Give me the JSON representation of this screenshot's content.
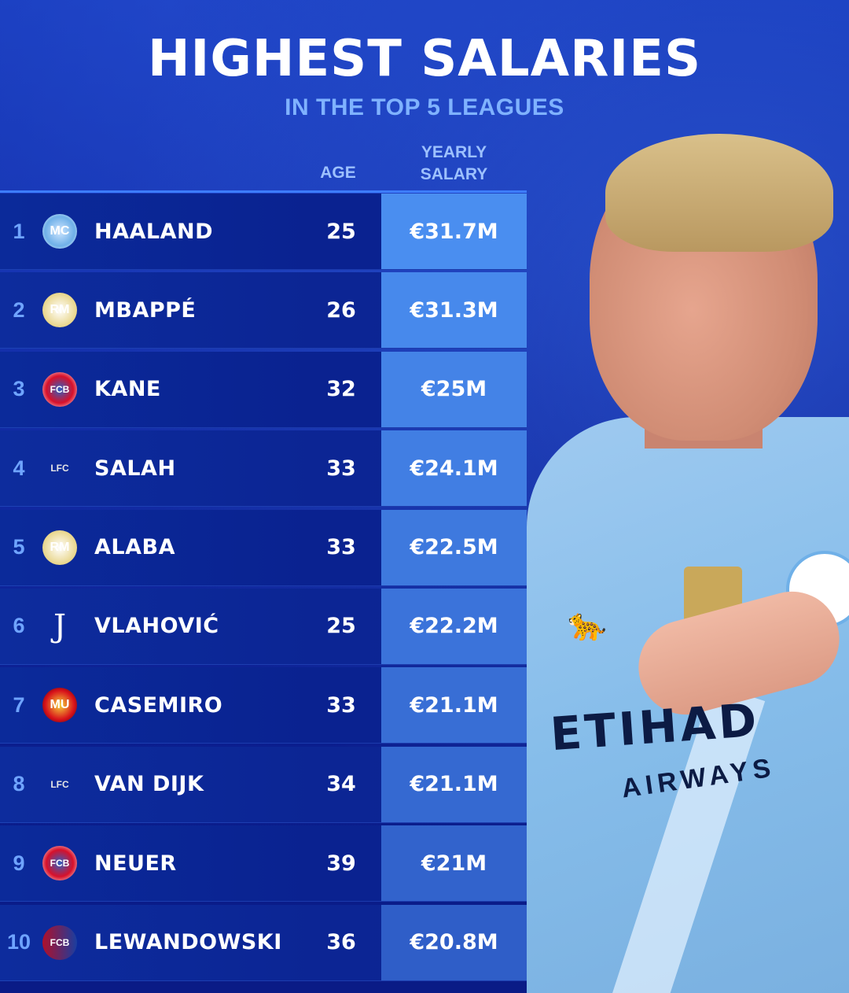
{
  "header": {
    "title": "HIGHEST SALARIES",
    "subtitle": "IN THE TOP 5 LEAGUES"
  },
  "columns": {
    "age": "AGE",
    "salary_line1": "YEARLY",
    "salary_line2": "SALARY"
  },
  "colors": {
    "background": "#0a1a8a",
    "accent": "#3d7dff",
    "subtitle": "#7fb2ff",
    "salary_top": "#4a8ef0",
    "salary_bottom": "#2f5ec8"
  },
  "rows": [
    {
      "rank": "1",
      "club_icon": "manchester-city-crest",
      "name": "HAALAND",
      "age": "25",
      "salary": "€31.7M"
    },
    {
      "rank": "2",
      "club_icon": "real-madrid-crest",
      "name": "MBAPPÉ",
      "age": "26",
      "salary": "€31.3M"
    },
    {
      "rank": "3",
      "club_icon": "bayern-munich-crest",
      "name": "KANE",
      "age": "32",
      "salary": "€25M"
    },
    {
      "rank": "4",
      "club_icon": "liverpool-crest",
      "name": "SALAH",
      "age": "33",
      "salary": "€24.1M"
    },
    {
      "rank": "5",
      "club_icon": "real-madrid-crest",
      "name": "ALABA",
      "age": "33",
      "salary": "€22.5M"
    },
    {
      "rank": "6",
      "club_icon": "juventus-crest",
      "name": "VLAHOVIĆ",
      "age": "25",
      "salary": "€22.2M"
    },
    {
      "rank": "7",
      "club_icon": "manchester-united-crest",
      "name": "CASEMIRO",
      "age": "33",
      "salary": "€21.1M"
    },
    {
      "rank": "8",
      "club_icon": "liverpool-crest",
      "name": "VAN DIJK",
      "age": "34",
      "salary": "€21.1M"
    },
    {
      "rank": "9",
      "club_icon": "bayern-munich-crest",
      "name": "NEUER",
      "age": "39",
      "salary": "€21M"
    },
    {
      "rank": "10",
      "club_icon": "barcelona-crest",
      "name": "LEWANDOWSKI",
      "age": "36",
      "salary": "€20.8M"
    }
  ],
  "photo": {
    "sponsor": "ETIHAD",
    "sponsor_sub": "AIRWAYS"
  }
}
